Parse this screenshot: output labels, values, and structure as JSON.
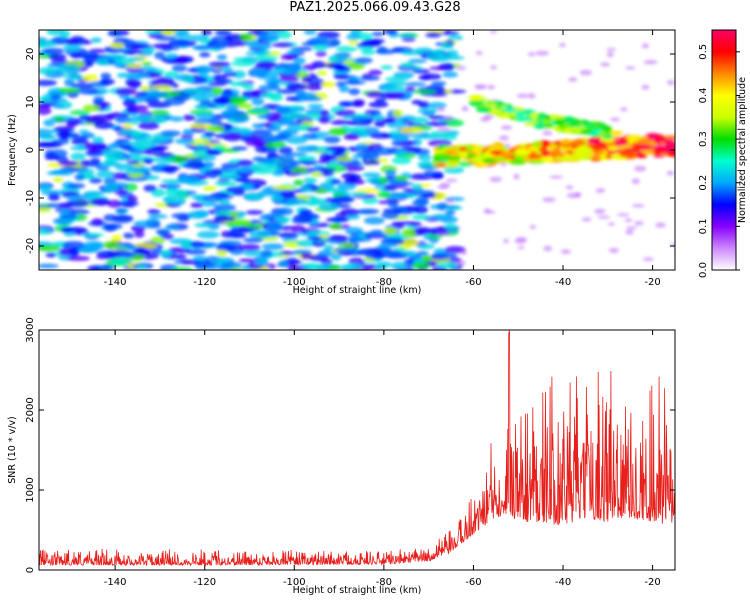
{
  "title": "PAZ1.2025.066.09.43.G28",
  "chart_data": [
    {
      "type": "heatmap",
      "name": "spectrogram",
      "xlabel": "Height of straight line (km)",
      "ylabel": "Frequency (Hz)",
      "xlim": [
        -157,
        -15
      ],
      "ylim": [
        -25,
        25
      ],
      "xticks": [
        -140,
        -120,
        -100,
        -80,
        -60,
        -40,
        -20
      ],
      "yticks": [
        -20,
        -10,
        0,
        10,
        20
      ],
      "colorbar": {
        "label": "Normalized spectral amplitude",
        "range": [
          0.0,
          0.55
        ],
        "ticks": [
          0.0,
          0.1,
          0.2,
          0.3,
          0.4,
          0.5
        ],
        "colors": [
          "#ffffff",
          "#cc88ff",
          "#8800ff",
          "#0000ff",
          "#00aaff",
          "#00ffcc",
          "#00dd00",
          "#ccff00",
          "#ffff00",
          "#ff8800",
          "#ff0000",
          "#ff0066"
        ]
      },
      "features": {
        "noise_region_x": [
          -157,
          -68
        ],
        "signal_band": {
          "x_range": [
            -68,
            -15
          ],
          "freq_at_start_hz": -1.5,
          "freq_at_end_hz": 1,
          "secondary_branch": [
            [
              -60,
              10
            ],
            [
              -45,
              6
            ],
            [
              -30,
              4
            ]
          ],
          "peak_amplitude": 0.55,
          "peak_x_km": -20,
          "peak_freq_hz": 3
        }
      }
    },
    {
      "type": "line",
      "name": "snr",
      "xlabel": "Height of straight line (km)",
      "ylabel": "SNR (10 * v/v)",
      "xlim": [
        -157,
        -15
      ],
      "ylim": [
        0,
        3000
      ],
      "xticks": [
        -140,
        -120,
        -100,
        -80,
        -60,
        -40,
        -20
      ],
      "yticks": [
        0,
        1000,
        2000,
        3000
      ],
      "color": "#e8201c",
      "envelope": {
        "x": [
          -157,
          -140,
          -120,
          -100,
          -80,
          -70,
          -65,
          -60,
          -55,
          -52,
          -50,
          -45,
          -40,
          -35,
          -30,
          -25,
          -20,
          -17,
          -15
        ],
        "baseline": [
          60,
          60,
          60,
          65,
          70,
          110,
          220,
          450,
          650,
          700,
          600,
          600,
          550,
          650,
          600,
          650,
          600,
          550,
          600
        ],
        "peak": [
          260,
          270,
          260,
          250,
          240,
          300,
          500,
          1000,
          1800,
          3000,
          2100,
          2400,
          2500,
          2400,
          2700,
          2500,
          2600,
          2450,
          900
        ]
      }
    }
  ]
}
